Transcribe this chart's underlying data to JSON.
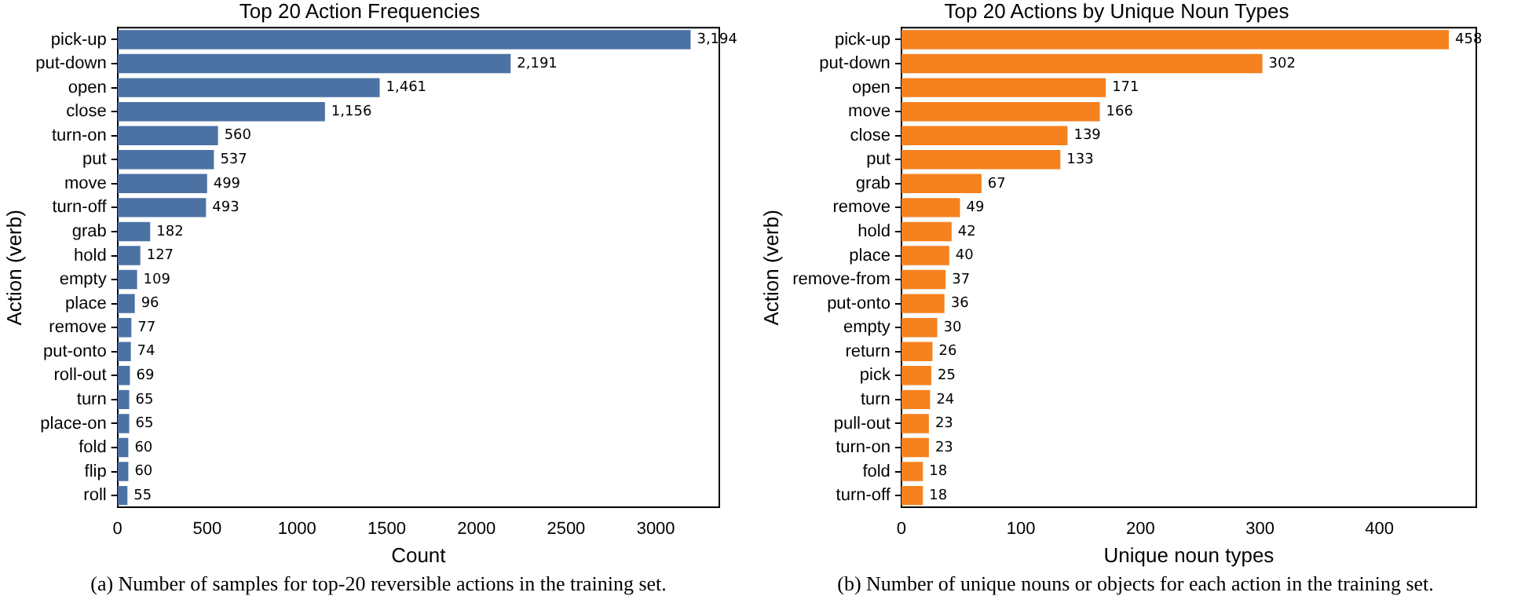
{
  "chart_data": [
    {
      "type": "bar",
      "orientation": "horizontal",
      "title": "Top 20 Action Frequencies",
      "xlabel": "Count",
      "ylabel": "Action (verb)",
      "categories": [
        "pick-up",
        "put-down",
        "open",
        "close",
        "turn-on",
        "put",
        "move",
        "turn-off",
        "grab",
        "hold",
        "empty",
        "place",
        "remove",
        "put-onto",
        "roll-out",
        "turn",
        "place-on",
        "fold",
        "flip",
        "roll"
      ],
      "values": [
        3194,
        2191,
        1461,
        1156,
        560,
        537,
        499,
        493,
        182,
        127,
        109,
        96,
        77,
        74,
        69,
        65,
        65,
        60,
        60,
        55
      ],
      "value_labels": [
        "3,194",
        "2,191",
        "1,461",
        "1,156",
        "560",
        "537",
        "499",
        "493",
        "182",
        "127",
        "109",
        "96",
        "77",
        "74",
        "69",
        "65",
        "65",
        "60",
        "60",
        "55"
      ],
      "color": "#4c72a4",
      "xlim": [
        0,
        3354
      ],
      "xticks": [
        0,
        500,
        1000,
        1500,
        2000,
        2500,
        3000
      ],
      "grid": false,
      "legend": false,
      "annotations": [
        "(a) Number of samples for top-20 reversible actions in the training set."
      ]
    },
    {
      "type": "bar",
      "orientation": "horizontal",
      "title": "Top 20 Actions by Unique Noun Types",
      "xlabel": "Unique noun types",
      "ylabel": "Action (verb)",
      "categories": [
        "pick-up",
        "put-down",
        "open",
        "move",
        "close",
        "put",
        "grab",
        "remove",
        "hold",
        "place",
        "remove-from",
        "put-onto",
        "empty",
        "return",
        "pick",
        "turn",
        "pull-out",
        "turn-on",
        "fold",
        "turn-off"
      ],
      "values": [
        458,
        302,
        171,
        166,
        139,
        133,
        67,
        49,
        42,
        40,
        37,
        36,
        30,
        26,
        25,
        24,
        23,
        23,
        18,
        18
      ],
      "data_labels": true,
      "color": "#f5811f",
      "xlim": [
        0,
        481
      ],
      "xticks": [
        0,
        100,
        200,
        300,
        400
      ],
      "grid": false,
      "legend": false,
      "annotations": [
        "(b) Number of unique nouns or objects for each action in the training set."
      ]
    }
  ]
}
